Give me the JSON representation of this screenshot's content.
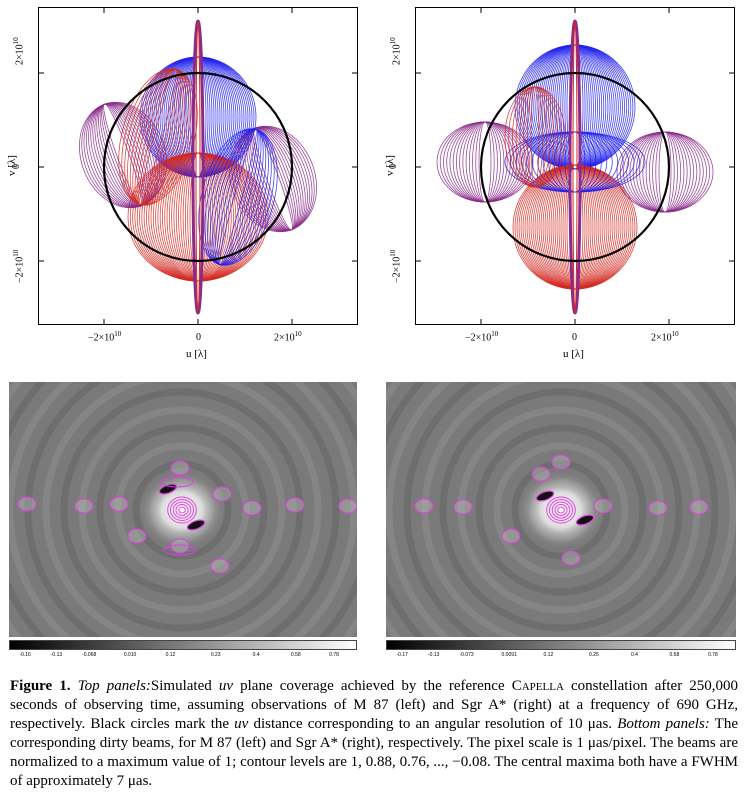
{
  "panels": {
    "left_uv": {
      "target": "M 87",
      "xlabel": "u [λ]",
      "ylabel": "v [λ]",
      "xticks": [
        "−2×10",
        "0",
        "2×10"
      ],
      "yticks": [
        "2×10",
        "0",
        "−2×10"
      ],
      "exp": "10"
    },
    "right_uv": {
      "target": "Sgr A*",
      "xlabel": "u [λ]",
      "ylabel": "v [λ]",
      "xticks": [
        "−2×10",
        "0",
        "2×10"
      ],
      "yticks": [
        "2×10",
        "0",
        "−2×10"
      ],
      "exp": "10"
    },
    "left_beam": {
      "colorbar_ticks": [
        "-0.16",
        "-0.13",
        "-0.068",
        "0.010",
        "0.12",
        "0.23",
        "0.4",
        "0.58",
        "0.78"
      ]
    },
    "right_beam": {
      "colorbar_ticks": [
        "-0.17",
        "-0.13",
        "-0.073",
        "0.0091",
        "0.12",
        "0.25",
        "0.4",
        "0.58",
        "0.78"
      ]
    }
  },
  "colors": {
    "red": "#d42a22",
    "blue": "#2222ee",
    "purple": "#8a2a8a",
    "beam_bg": "#7a7a7a",
    "contour": "#e040e0"
  },
  "caption": {
    "label": "Figure 1.",
    "top_panels_label": "Top panels:",
    "part1": "Simulated ",
    "uv": "uv",
    "part2": " plane coverage achieved by the reference ",
    "capella": "Capella",
    "part3": " constellation after 250,000 seconds of observing time, assuming observations of M 87 (left) and Sgr A* (right) at a frequency of 690 GHz, respectively. Black circles mark the ",
    "uv2": "uv",
    "part4": " distance corresponding to an angular resolution of 10 μas. ",
    "bottom_panels_label": "Bottom panels:",
    "part5": " The corresponding dirty beams, for M 87 (left) and Sgr A* (right), respectively. The pixel scale is 1 μas/pixel. The beams are normalized to a maximum value of 1; contour levels are 1, 0.88, 0.76, ..., −0.08. The central maxima both have a FWHM of approximately 7 μas."
  }
}
